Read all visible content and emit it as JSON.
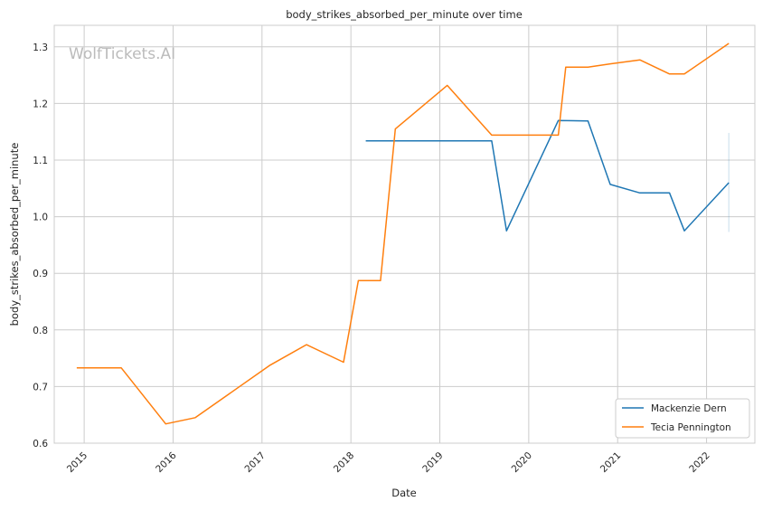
{
  "chart_data": {
    "type": "line",
    "title": "body_strikes_absorbed_per_minute over time",
    "xlabel": "Date",
    "ylabel": "body_strikes_absorbed_per_minute",
    "watermark": "WolfTickets.AI",
    "xlim": [
      "2014-08",
      "2022-08"
    ],
    "ylim": [
      0.6,
      1.338
    ],
    "grid": true,
    "legend_position": "bottom-right",
    "x_ticks": [
      "2015",
      "2016",
      "2017",
      "2018",
      "2019",
      "2020",
      "2021",
      "2022"
    ],
    "y_ticks": [
      "0.6",
      "0.7",
      "0.8",
      "0.9",
      "1.0",
      "1.1",
      "1.2",
      "1.3"
    ],
    "series": [
      {
        "name": "Mackenzie Dern",
        "color": "#1f77b4",
        "x": [
          "2018-03",
          "2019-08",
          "2019-10",
          "2020-05",
          "2020-09",
          "2020-12",
          "2021-04",
          "2021-08",
          "2021-10",
          "2022-04"
        ],
        "y": [
          1.134,
          1.134,
          0.975,
          1.17,
          1.169,
          1.057,
          1.042,
          1.042,
          0.975,
          1.06
        ],
        "error_bar": {
          "x": "2022-04",
          "low": 0.973,
          "high": 1.148
        }
      },
      {
        "name": "Tecia Pennington",
        "color": "#ff7f0e",
        "x": [
          "2014-12",
          "2015-06",
          "2015-12",
          "2016-04",
          "2017-02",
          "2017-07",
          "2017-12",
          "2018-02",
          "2018-05",
          "2018-07",
          "2019-02",
          "2019-08",
          "2020-05",
          "2020-06",
          "2020-09",
          "2020-12",
          "2021-04",
          "2021-08",
          "2021-10",
          "2022-04"
        ],
        "y": [
          0.733,
          0.733,
          0.634,
          0.645,
          0.737,
          0.774,
          0.743,
          0.887,
          0.887,
          1.155,
          1.232,
          1.144,
          1.144,
          1.264,
          1.264,
          1.27,
          1.277,
          1.252,
          1.252,
          1.306
        ]
      }
    ]
  }
}
